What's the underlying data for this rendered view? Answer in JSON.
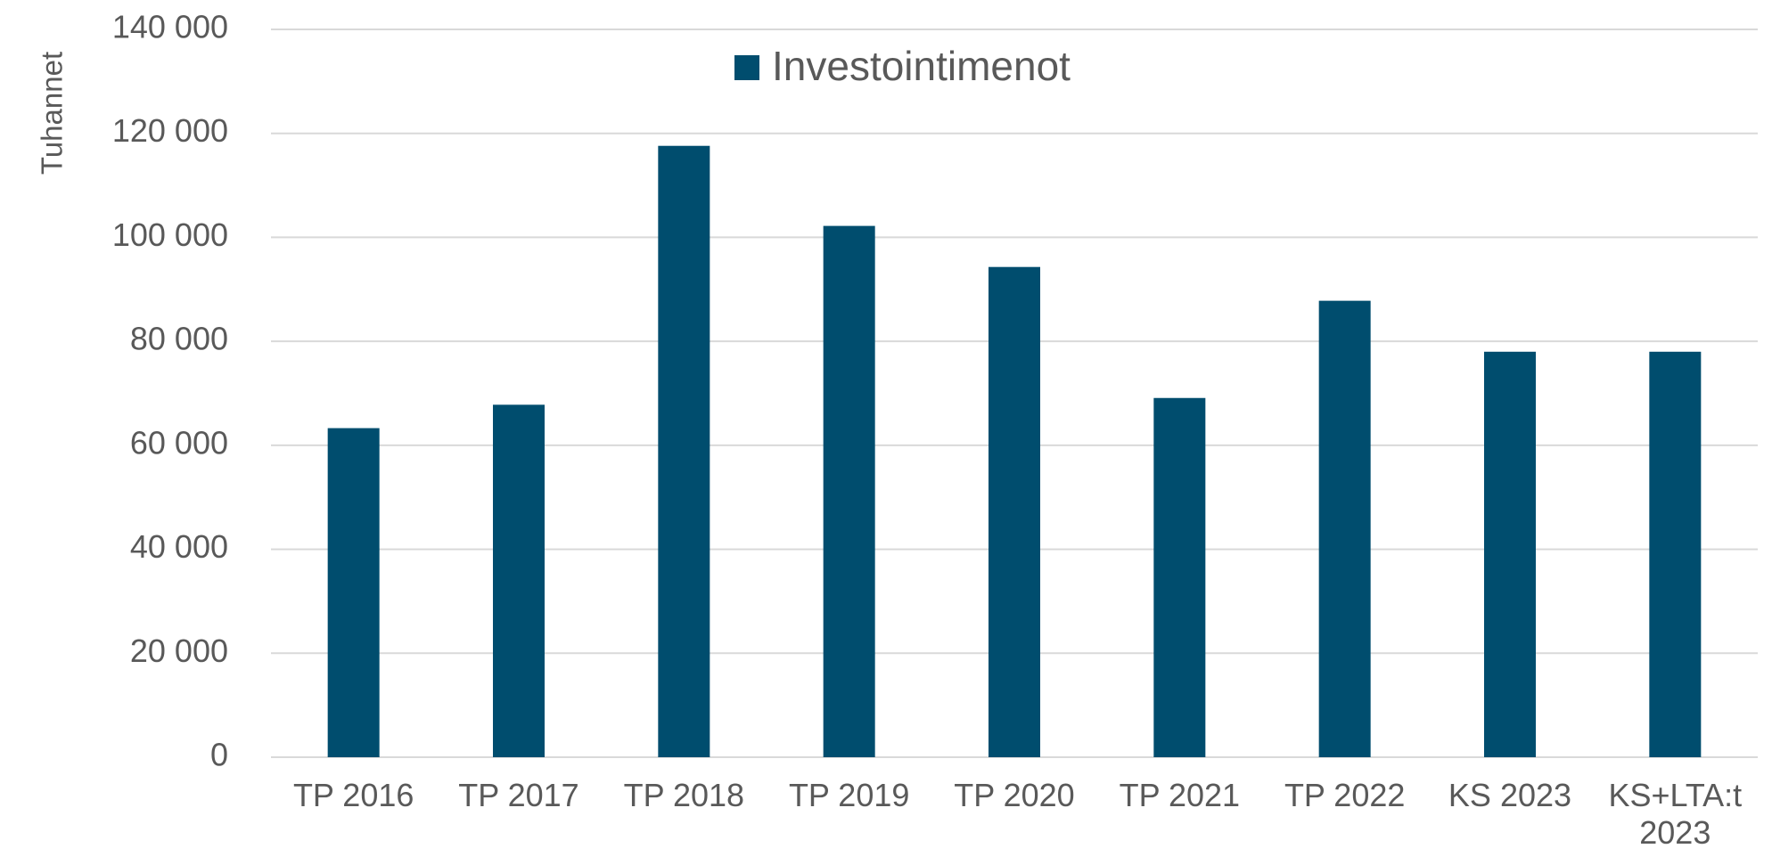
{
  "chart_data": {
    "type": "bar",
    "y_axis_label": "Tuhannet",
    "categories": [
      "TP 2016",
      "TP 2017",
      "TP 2018",
      "TP 2019",
      "TP 2020",
      "TP 2021",
      "TP 2022",
      "KS 2023",
      "KS+LTA:t 2023"
    ],
    "series": [
      {
        "name": "Investointimenot",
        "color": "#004d6e",
        "values": [
          63300,
          67800,
          117600,
          102200,
          94300,
          69100,
          87800,
          78000,
          78000
        ]
      }
    ],
    "ylim": [
      0,
      140000
    ],
    "yticks": [
      0,
      {
        "value": 20000,
        "label": "20 000"
      },
      {
        "value": 40000,
        "label": "40 000"
      },
      {
        "value": 60000,
        "label": "60 000"
      },
      {
        "value": 80000,
        "label": "80 000"
      },
      {
        "value": 100000,
        "label": "100 000"
      },
      {
        "value": 120000,
        "label": "120 000"
      },
      {
        "value": 140000,
        "label": "140 000"
      }
    ],
    "grid": true,
    "legend": "top"
  }
}
